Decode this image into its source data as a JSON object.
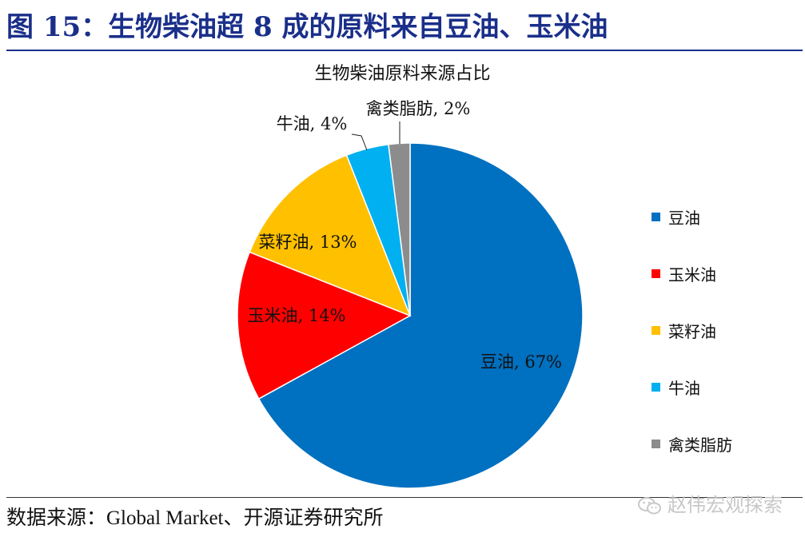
{
  "figure_title": "图 15：生物柴油超 8 成的原料来自豆油、玉米油",
  "source_text": "数据来源：Global Market、开源证券研究所",
  "watermark": "赵伟宏观探索",
  "chart_data": {
    "type": "pie",
    "title": "生物柴油原料来源占比",
    "start_angle_deg": 0,
    "direction": "clockwise",
    "legend_position": "right",
    "slices": [
      {
        "name": "豆油",
        "value": 67,
        "label": "豆油, 67%",
        "color": "#0070c0"
      },
      {
        "name": "玉米油",
        "value": 14,
        "label": "玉米油, 14%",
        "color": "#ff0000"
      },
      {
        "name": "菜籽油",
        "value": 13,
        "label": "菜籽油, 13%",
        "color": "#ffc000"
      },
      {
        "name": "牛油",
        "value": 4,
        "label": "牛油, 4%",
        "color": "#00b0f0"
      },
      {
        "name": "禽类脂肪",
        "value": 2,
        "label": "禽类脂肪, 2%",
        "color": "#8c8c8c"
      }
    ]
  }
}
